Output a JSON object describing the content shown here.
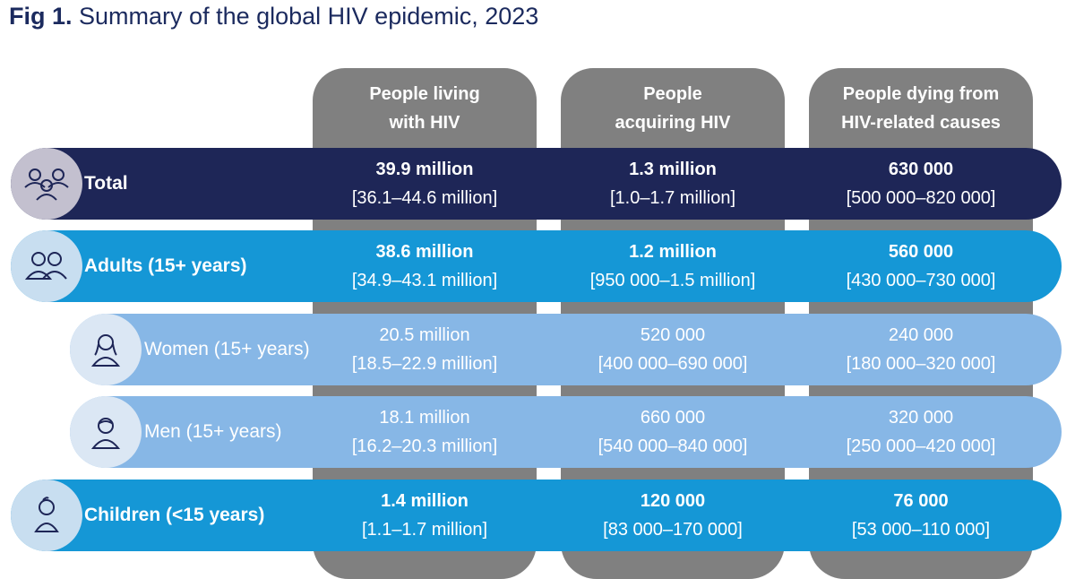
{
  "figure": {
    "label": "Fig 1.",
    "title": "Summary of the global HIV epidemic, 2023"
  },
  "colors": {
    "column_bg": "#808080",
    "total_row": "#1e2657",
    "primary_row": "#1597d6",
    "sub_row": "#87b7e6",
    "title": "#1b2a5e"
  },
  "chart_data": {
    "type": "table",
    "title": "Summary of the global HIV epidemic, 2023",
    "columns": [
      {
        "key": "living",
        "line1": "People living",
        "line2": "with HIV"
      },
      {
        "key": "acquiring",
        "line1": "People",
        "line2": "acquiring HIV"
      },
      {
        "key": "dying",
        "line1": "People dying from",
        "line2": "HIV-related causes"
      }
    ],
    "rows": [
      {
        "label": "Total",
        "icon": "group-icon",
        "cells": [
          {
            "value": "39.9 million",
            "range": "[36.1–44.6 million]"
          },
          {
            "value": "1.3 million",
            "range": "[1.0–1.7 million]"
          },
          {
            "value": "630 000",
            "range": "[500 000–820 000]"
          }
        ]
      },
      {
        "label": "Adults (15+ years)",
        "icon": "adults-icon",
        "cells": [
          {
            "value": "38.6 million",
            "range": "[34.9–43.1 million]"
          },
          {
            "value": "1.2 million",
            "range": "[950 000–1.5 million]"
          },
          {
            "value": "560 000",
            "range": "[430 000–730 000]"
          }
        ]
      },
      {
        "label": "Women (15+ years)",
        "icon": "woman-icon",
        "cells": [
          {
            "value": "20.5 million",
            "range": "[18.5–22.9 million]"
          },
          {
            "value": "520 000",
            "range": "[400 000–690 000]"
          },
          {
            "value": "240 000",
            "range": "[180 000–320 000]"
          }
        ]
      },
      {
        "label": "Men (15+ years)",
        "icon": "man-icon",
        "cells": [
          {
            "value": "18.1 million",
            "range": "[16.2–20.3 million]"
          },
          {
            "value": "660 000",
            "range": "[540 000–840 000]"
          },
          {
            "value": "320 000",
            "range": "[250 000–420 000]"
          }
        ]
      },
      {
        "label": "Children (<15 years)",
        "icon": "child-icon",
        "cells": [
          {
            "value": "1.4 million",
            "range": "[1.1–1.7 million]"
          },
          {
            "value": "120 000",
            "range": "[83 000–170 000]"
          },
          {
            "value": "76 000",
            "range": "[53 000–110 000]"
          }
        ]
      }
    ]
  }
}
